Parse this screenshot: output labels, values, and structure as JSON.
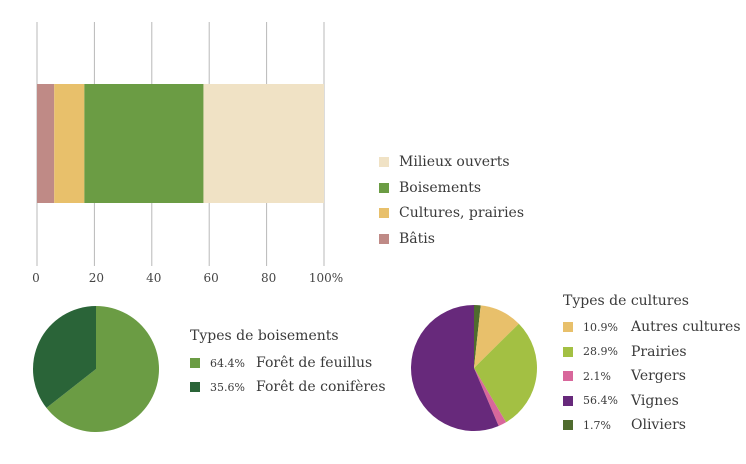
{
  "chart_data": [
    {
      "type": "bar",
      "orientation": "horizontal-stacked",
      "series": [
        {
          "name": "Bâtis",
          "values": [
            6
          ],
          "color": "#bf8a86"
        },
        {
          "name": "Cultures, prairies",
          "values": [
            10.5
          ],
          "color": "#e8c06b"
        },
        {
          "name": "Boisements",
          "values": [
            41.5
          ],
          "color": "#6b9c44"
        },
        {
          "name": "Milieux ouverts",
          "values": [
            42
          ],
          "color": "#f0e2c5"
        }
      ],
      "xlim": [
        0,
        100
      ],
      "ticks": [
        "0",
        "20",
        "40",
        "60",
        "80",
        "100%"
      ],
      "grid": true,
      "legend_order": [
        "Milieux ouverts",
        "Boisements",
        "Cultures, prairies",
        "Bâtis"
      ],
      "legend_position": "right"
    },
    {
      "type": "pie",
      "title": "Types de boisements",
      "slices": [
        {
          "label": "Forêt de feuillus",
          "pct_text": "64.4%",
          "value": 64.4,
          "color": "#6b9c44"
        },
        {
          "label": "Forêt de conifères",
          "pct_text": "35.6%",
          "value": 35.6,
          "color": "#2a6438"
        }
      ]
    },
    {
      "type": "pie",
      "title": "Types de cultures",
      "slices": [
        {
          "label": "Oliviers",
          "pct_text": "1.7%",
          "value": 1.7,
          "color": "#4f6b2e"
        },
        {
          "label": "Autres cultures",
          "pct_text": "10.9%",
          "value": 10.9,
          "color": "#e8c06b"
        },
        {
          "label": "Prairies",
          "pct_text": "28.9%",
          "value": 28.9,
          "color": "#a3c043"
        },
        {
          "label": "Vergers",
          "pct_text": "2.1%",
          "value": 2.1,
          "color": "#d8679b"
        },
        {
          "label": "Vignes",
          "pct_text": "56.4%",
          "value": 56.4,
          "color": "#67297b"
        }
      ],
      "legend_order": [
        "Autres cultures",
        "Prairies",
        "Vergers",
        "Vignes",
        "Oliviers"
      ]
    }
  ]
}
